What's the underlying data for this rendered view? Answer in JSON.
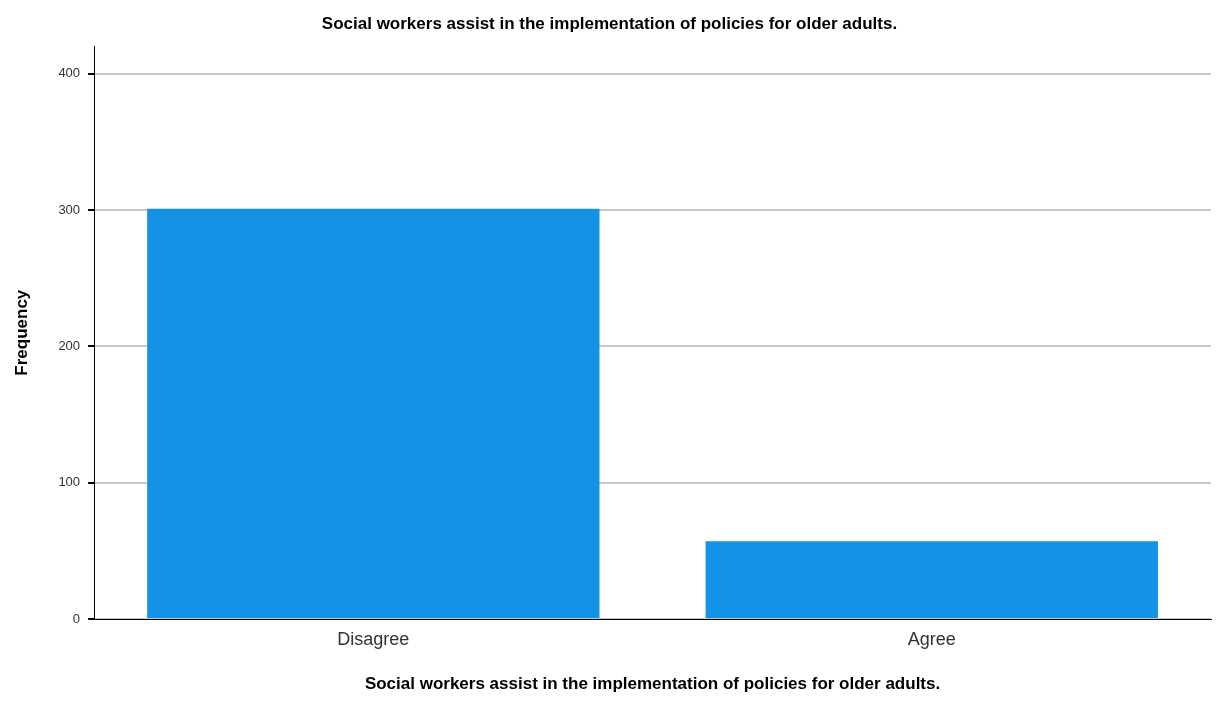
{
  "chart_data": {
    "type": "bar",
    "title": "Social workers assist in the implementation of policies for older adults.",
    "xlabel": "Social workers assist in the implementation of policies for older adults.",
    "ylabel": "Frequency",
    "categories": [
      "Disagree",
      "Agree"
    ],
    "values": [
      301,
      57
    ],
    "color": "#1492e6",
    "ylim": [
      0,
      420
    ],
    "yticks": [
      0,
      100,
      200,
      300,
      400
    ],
    "grid": "y",
    "legend": false
  }
}
